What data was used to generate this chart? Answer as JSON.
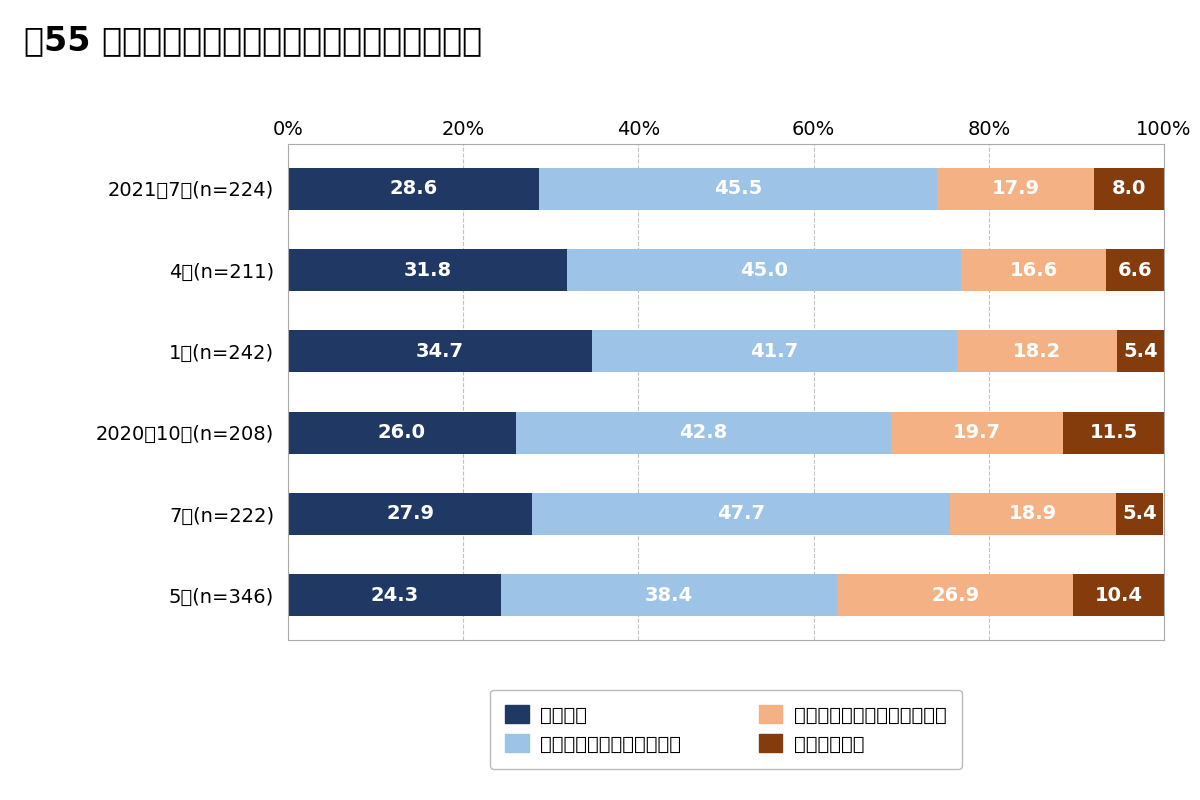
{
  "title": "図55 コロナ禍収束後もテレワークを行いたいか",
  "categories": [
    "2021年7月(n=224)",
    "4月(n=211)",
    "1月(n=242)",
    "2020年10月(n=208)",
    "7月(n=222)",
    "5月(n=346)"
  ],
  "series": [
    {
      "name": "そう思う",
      "values": [
        28.6,
        31.8,
        34.7,
        26.0,
        27.9,
        24.3
      ],
      "color": "#1f3864"
    },
    {
      "name": "どちらかと言えばそう思う",
      "values": [
        45.5,
        45.0,
        41.7,
        42.8,
        47.7,
        38.4
      ],
      "color": "#9dc3e6"
    },
    {
      "name": "どちらと言えばそう思わない",
      "values": [
        17.9,
        16.6,
        18.2,
        19.7,
        18.9,
        26.9
      ],
      "color": "#f4b183"
    },
    {
      "name": "そう思わない",
      "values": [
        8.0,
        6.6,
        5.4,
        11.5,
        5.4,
        10.4
      ],
      "color": "#843c0c"
    }
  ],
  "xlim": [
    0,
    100
  ],
  "xticks": [
    0,
    20,
    40,
    60,
    80,
    100
  ],
  "xticklabels": [
    "0%",
    "20%",
    "40%",
    "60%",
    "80%",
    "100%"
  ],
  "background_color": "#ffffff",
  "plot_bg_color": "#ffffff",
  "title_fontsize": 24,
  "label_fontsize": 14,
  "tick_fontsize": 14,
  "legend_fontsize": 14,
  "bar_height": 0.52
}
